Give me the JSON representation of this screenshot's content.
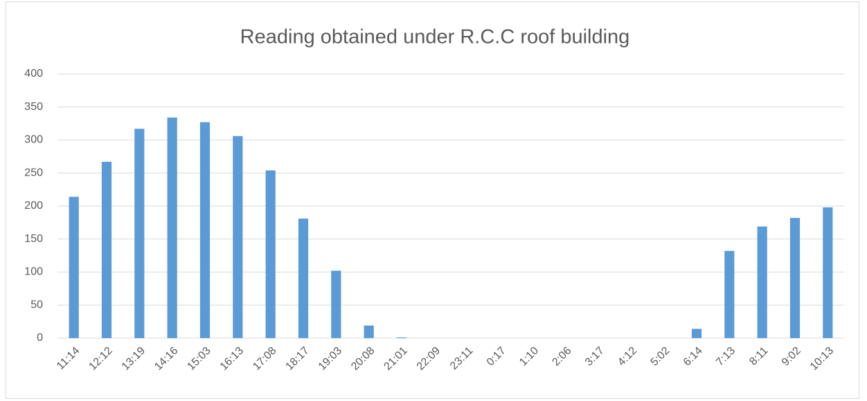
{
  "chart_data": {
    "type": "bar",
    "title": "Reading obtained under R.C.C roof building",
    "categories": [
      "11:14",
      "12:12",
      "13:19",
      "14:16",
      "15:03",
      "16:13",
      "17:08",
      "18:17",
      "19:03",
      "20:08",
      "21:01",
      "22:09",
      "23:11",
      "0:17",
      "1:10",
      "2:06",
      "3:17",
      "4:12",
      "5:02",
      "6:14",
      "7:13",
      "8:11",
      "9:02",
      "10:13"
    ],
    "values": [
      214,
      267,
      317,
      334,
      327,
      306,
      254,
      181,
      102,
      19,
      1,
      0,
      0,
      0,
      0,
      0,
      0,
      0,
      0,
      14,
      132,
      169,
      182,
      198
    ],
    "color": "#5b9bd5",
    "ylim": [
      0,
      400
    ],
    "yticks": [
      0,
      50,
      100,
      150,
      200,
      250,
      300,
      350,
      400
    ],
    "grid": true
  }
}
